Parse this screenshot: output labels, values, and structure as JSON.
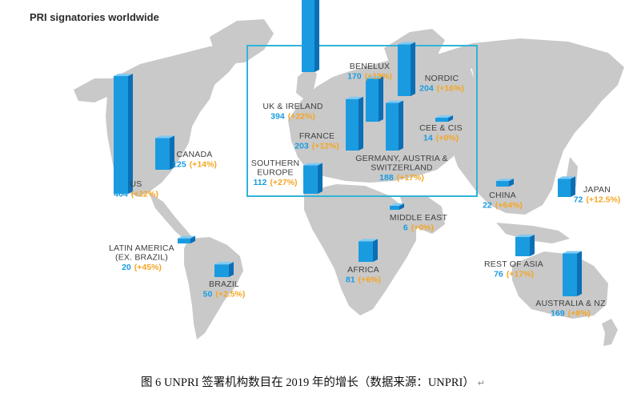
{
  "title": "PRI signatories worldwide",
  "colors": {
    "bar_front": "#1a9be0",
    "bar_side": "#0c6fb5",
    "bar_top": "#7fc9f2",
    "count": "#1a9be0",
    "growth": "#f5a623",
    "land": "#c9c9c9",
    "europe_box": "#2fb4d9"
  },
  "regions": [
    {
      "id": "us",
      "name": [
        "US"
      ],
      "count": "464",
      "growth": "(+22%)",
      "value": 464
    },
    {
      "id": "canada",
      "name": [
        "CANADA"
      ],
      "count": "125",
      "growth": "(+14%)",
      "value": 125
    },
    {
      "id": "uk-ireland",
      "name": [
        "UK & IRELAND"
      ],
      "count": "394",
      "growth": "(+22%)",
      "value": 394
    },
    {
      "id": "benelux",
      "name": [
        "BENELUX"
      ],
      "count": "170",
      "growth": "(+19%)",
      "value": 170
    },
    {
      "id": "nordic",
      "name": [
        "NORDIC"
      ],
      "count": "204",
      "growth": "(+16%)",
      "value": 204
    },
    {
      "id": "france",
      "name": [
        "FRANCE"
      ],
      "count": "203",
      "growth": "(+12%)",
      "value": 203
    },
    {
      "id": "cee-cis",
      "name": [
        "CEE & CIS"
      ],
      "count": "14",
      "growth": "(+0%)",
      "value": 14
    },
    {
      "id": "southern-europe",
      "name": [
        "SOUTHERN",
        "EUROPE"
      ],
      "count": "112",
      "growth": "(+27%)",
      "value": 112
    },
    {
      "id": "germany-austria-switzerland",
      "name": [
        "GERMANY, AUSTRIA &",
        "SWITZERLAND"
      ],
      "count": "188",
      "growth": "(+17%)",
      "value": 188
    },
    {
      "id": "middle-east",
      "name": [
        "MIDDLE EAST"
      ],
      "count": "6",
      "growth": "(+0%)",
      "value": 6
    },
    {
      "id": "china",
      "name": [
        "CHINA"
      ],
      "count": "22",
      "growth": "(+64%)",
      "value": 22
    },
    {
      "id": "japan",
      "name": [
        "JAPAN"
      ],
      "count": "72",
      "growth": "(+12.5%)",
      "value": 72
    },
    {
      "id": "latin-america",
      "name": [
        "LATIN AMERICA",
        "(EX. BRAZIL)"
      ],
      "count": "20",
      "growth": "(+45%)",
      "value": 20
    },
    {
      "id": "brazil",
      "name": [
        "BRAZIL"
      ],
      "count": "50",
      "growth": "(+2.5%)",
      "value": 50
    },
    {
      "id": "africa",
      "name": [
        "AFRICA"
      ],
      "count": "81",
      "growth": "(+6%)",
      "value": 81
    },
    {
      "id": "rest-of-asia",
      "name": [
        "REST OF ASIA"
      ],
      "count": "76",
      "growth": "(+17%)",
      "value": 76
    },
    {
      "id": "australia-nz",
      "name": [
        "AUSTRALIA & NZ"
      ],
      "count": "169",
      "growth": "(+8%)",
      "value": 169
    }
  ],
  "caption": "图 6 UNPRI 签署机构数目在 2019 年的增长（数据来源：UNPRI）",
  "caption_mark": "↵"
}
